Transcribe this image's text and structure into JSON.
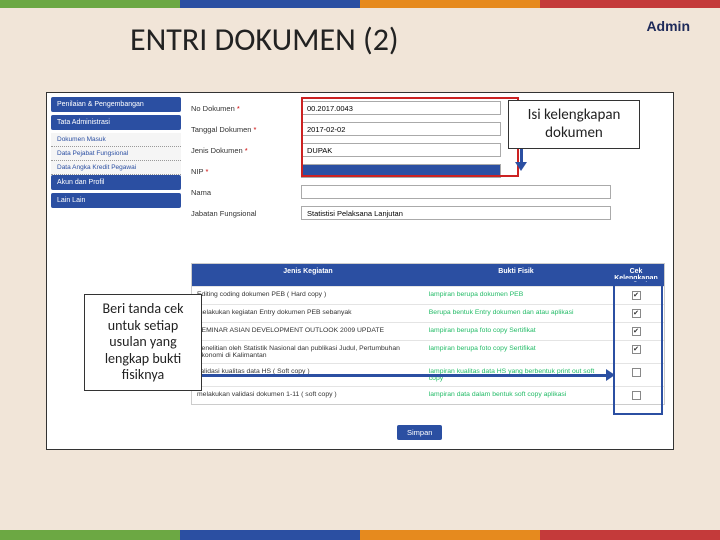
{
  "accent_colors": [
    "#6ca843",
    "#2b4fa2",
    "#e68a1e",
    "#c43a3a"
  ],
  "header": {
    "admin": "Admin",
    "title": "ENTRI DOKUMEN (2)"
  },
  "sidebar": {
    "items": [
      {
        "label": "Penilaian & Pengembangan",
        "type": "main"
      },
      {
        "label": "Tata Administrasi",
        "type": "main"
      },
      {
        "label": "Dokumen Masuk",
        "type": "sub"
      },
      {
        "label": "Data Pejabat Fungsional",
        "type": "sub"
      },
      {
        "label": "Data Angka Kredit Pegawai",
        "type": "sub"
      },
      {
        "label": "Akun dan Profil",
        "type": "main"
      },
      {
        "label": "Lain Lain",
        "type": "main"
      }
    ]
  },
  "form": {
    "rows": [
      {
        "label": "No Dokumen",
        "req": true,
        "value": "00.2017.0043"
      },
      {
        "label": "Tanggal Dokumen",
        "req": true,
        "value": "2017-02-02"
      },
      {
        "label": "Jenis Dokumen",
        "req": true,
        "value": "DUPAK"
      },
      {
        "label": "NIP",
        "req": true,
        "value": "",
        "blue": true
      },
      {
        "label": "Nama",
        "req": false,
        "value": "",
        "wide": true
      },
      {
        "label": "Jabatan Fungsional",
        "req": false,
        "value": "Statistisi Pelaksana Lanjutan",
        "wide": true
      }
    ]
  },
  "table": {
    "head": {
      "jenis": "Jenis Kegiatan",
      "bukti": "Bukti Fisik",
      "cek": "Cek Kelengkapan"
    },
    "rows": [
      {
        "jenis": "Editing coding dokumen PEB ( Hard copy )",
        "bukti": "lampiran berupa dokumen PEB",
        "checked": true
      },
      {
        "jenis": "melakukan kegiatan Entry dokumen PEB sebanyak",
        "bukti": "Berupa bentuk Entry dokumen dan atau aplikasi",
        "checked": true
      },
      {
        "jenis": "SEMINAR ASIAN DEVELOPMENT OUTLOOK 2009 UPDATE",
        "bukti": "lampiran berupa foto copy Sertifikat",
        "checked": true
      },
      {
        "jenis": "Penelitian oleh Statistik Nasional dan publikasi Judul, Pertumbuhan Ekonomi di Kalimantan",
        "bukti": "lampiran berupa foto copy Sertifikat",
        "checked": true
      },
      {
        "jenis": "validasi kualitas data HS ( Soft copy )",
        "bukti": "lampiran kualitas data HS yang berbentuk print out soft copy",
        "checked": false
      },
      {
        "jenis": "melakukan validasi dokumen 1-11 ( soft copy )",
        "bukti": "lampiran data dalam bentuk soft copy aplikasi",
        "checked": false
      }
    ],
    "button": "Simpan"
  },
  "callouts": {
    "top": "Isi kelengkapan dokumen",
    "left": "Beri tanda cek untuk setiap usulan yang lengkap bukti fisiknya"
  }
}
